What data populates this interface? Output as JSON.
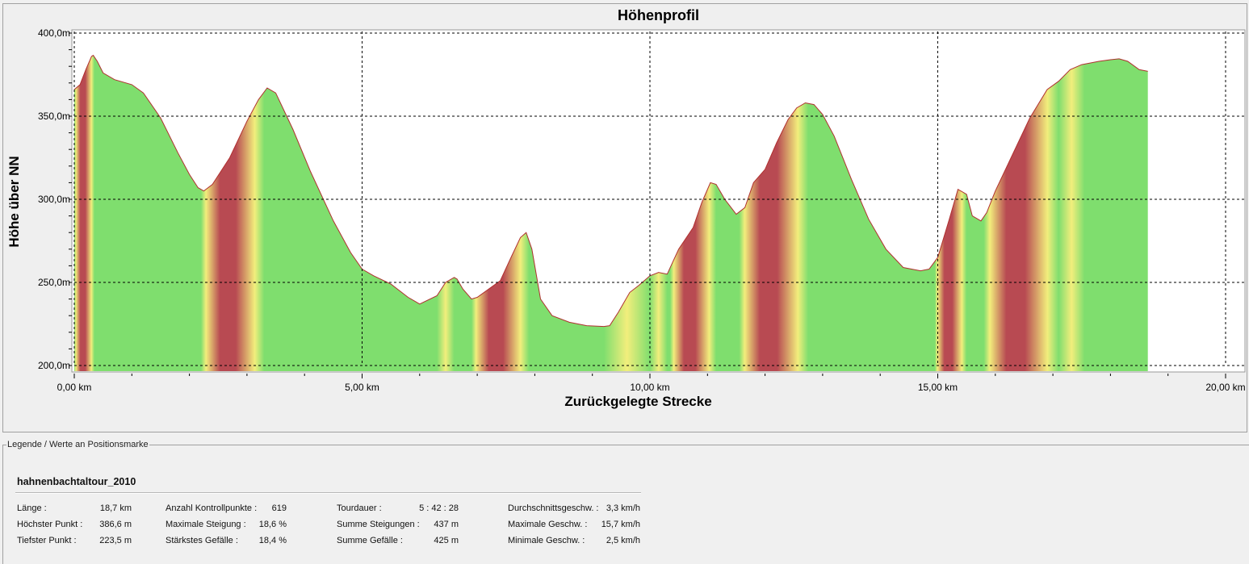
{
  "legend": {
    "caption": "Legende / Werte an Positionsmarke",
    "track_name": "hahnenbachtaltour_2010",
    "stats": [
      {
        "label": "Länge :",
        "value": "18,7 km"
      },
      {
        "label": "Höchster Punkt :",
        "value": "386,6 m"
      },
      {
        "label": "Tiefster Punkt :",
        "value": "223,5 m"
      },
      {
        "label": "Anzahl Kontrollpunkte :",
        "value": "619"
      },
      {
        "label": "Maximale Steigung :",
        "value": "18,6 %"
      },
      {
        "label": "Stärkstes Gefälle :",
        "value": "18,4 %"
      },
      {
        "label": "Tourdauer :",
        "value": "5 : 42 : 28"
      },
      {
        "label": "Summe Steigungen :",
        "value": "437 m"
      },
      {
        "label": "Summe Gefälle :",
        "value": "425 m"
      },
      {
        "label": "Durchschnittsgeschw. :",
        "value": "3,3 km/h"
      },
      {
        "label": "Maximale Geschw. :",
        "value": "15,7 km/h"
      },
      {
        "label": "Minimale Geschw. :",
        "value": "2,5 km/h"
      }
    ]
  },
  "colors": {
    "flat": "#7fde6e",
    "moderate": "#f2ee7c",
    "steep": "#b84a52",
    "outline": "#b03030",
    "grid": "#000000"
  },
  "chart_data": {
    "type": "area",
    "title": "Höhenprofil",
    "xlabel": "Zurückgelegte Strecke",
    "ylabel": "Höhe über NN",
    "xlim": [
      0,
      20
    ],
    "ylim": [
      200,
      400
    ],
    "x_ticks": [
      0,
      5,
      10,
      15,
      20
    ],
    "x_tick_labels": [
      "0,00 km",
      "5,00 km",
      "10,00 km",
      "15,00 km",
      "20,00 km"
    ],
    "y_ticks": [
      200,
      250,
      300,
      350,
      400
    ],
    "y_tick_labels": [
      "200,0m",
      "250,0m",
      "300,0m",
      "350,0m",
      "400,0m"
    ],
    "grid": true,
    "x": [
      0,
      0.1,
      0.2,
      0.3,
      0.33,
      0.4,
      0.5,
      0.7,
      1.0,
      1.2,
      1.5,
      1.8,
      2.0,
      2.15,
      2.25,
      2.4,
      2.7,
      3.0,
      3.2,
      3.35,
      3.5,
      3.8,
      4.1,
      4.5,
      4.8,
      5.0,
      5.2,
      5.5,
      5.8,
      6.0,
      6.3,
      6.45,
      6.6,
      6.65,
      6.75,
      6.9,
      7.0,
      7.2,
      7.4,
      7.6,
      7.75,
      7.85,
      7.95,
      8.1,
      8.3,
      8.6,
      8.9,
      9.2,
      9.3,
      9.45,
      9.65,
      9.8,
      10.0,
      10.15,
      10.3,
      10.5,
      10.75,
      10.9,
      11.05,
      11.15,
      11.3,
      11.5,
      11.65,
      11.8,
      12.0,
      12.2,
      12.4,
      12.55,
      12.7,
      12.85,
      13.0,
      13.2,
      13.5,
      13.8,
      14.1,
      14.4,
      14.7,
      14.85,
      15.0,
      15.2,
      15.35,
      15.5,
      15.6,
      15.75,
      15.85,
      16.0,
      16.3,
      16.6,
      16.9,
      17.1,
      17.3,
      17.5,
      17.8,
      18.0,
      18.15,
      18.3,
      18.5,
      18.65
    ],
    "values": [
      366,
      369,
      378,
      386,
      386.6,
      383,
      376,
      372,
      369,
      364,
      349,
      328,
      315,
      307,
      305,
      309,
      325,
      347,
      360,
      367,
      364,
      342,
      317,
      287,
      268,
      258,
      254,
      249,
      241,
      237,
      242,
      250,
      253,
      252,
      246,
      240,
      241,
      246,
      251,
      266,
      277,
      280,
      270,
      240,
      230,
      226,
      224,
      223.5,
      224,
      232,
      244,
      248,
      254,
      256,
      255,
      270,
      283,
      298,
      310,
      309,
      300,
      291,
      295,
      310,
      318,
      334,
      348,
      355,
      358,
      357,
      351,
      338,
      312,
      288,
      270,
      259,
      257,
      258,
      265,
      288,
      306,
      303,
      290,
      287,
      292,
      305,
      327,
      349,
      366,
      371,
      378,
      381,
      383,
      384,
      384.5,
      383,
      378,
      377
    ],
    "steepness_bands": [
      {
        "x0": 0.0,
        "x1": 0.35,
        "class": "steep"
      },
      {
        "x0": 2.2,
        "x1": 3.3,
        "class": "steep"
      },
      {
        "x0": 6.3,
        "x1": 6.6,
        "class": "moderate"
      },
      {
        "x0": 6.9,
        "x1": 7.9,
        "class": "steep"
      },
      {
        "x0": 9.2,
        "x1": 10.0,
        "class": "moderate"
      },
      {
        "x0": 10.0,
        "x1": 10.3,
        "class": "moderate"
      },
      {
        "x0": 10.35,
        "x1": 11.15,
        "class": "steep"
      },
      {
        "x0": 11.55,
        "x1": 12.75,
        "class": "steep"
      },
      {
        "x0": 14.95,
        "x1": 15.5,
        "class": "steep"
      },
      {
        "x0": 15.8,
        "x1": 17.1,
        "class": "steep"
      },
      {
        "x0": 17.1,
        "x1": 17.55,
        "class": "moderate"
      }
    ]
  }
}
